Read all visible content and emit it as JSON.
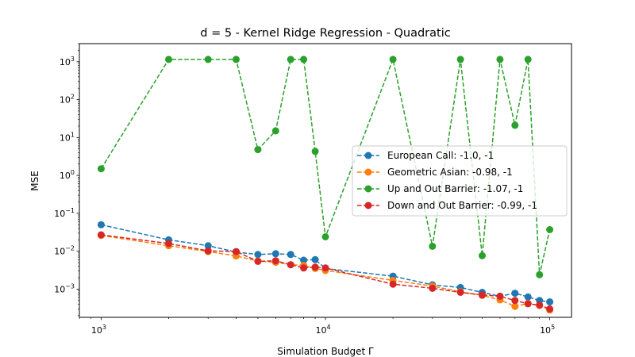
{
  "chart_data": {
    "type": "line",
    "title": "d = 5 - Kernel Ridge Regression - Quadratic",
    "xlabel": "Simulation Budget Γ",
    "ylabel": "MSE",
    "xscale": "log",
    "yscale": "log",
    "xlim": [
      800,
      125000
    ],
    "ylim": [
      0.00018,
      3000
    ],
    "grid": false,
    "legend_position": "center-right",
    "x_ticks": [
      {
        "value": 1000,
        "base": "10",
        "exp": "3"
      },
      {
        "value": 10000,
        "base": "10",
        "exp": "4"
      },
      {
        "value": 100000,
        "base": "10",
        "exp": "5"
      }
    ],
    "y_ticks": [
      {
        "value": 0.001,
        "base": "10",
        "exp": "−3"
      },
      {
        "value": 0.01,
        "base": "10",
        "exp": "−2"
      },
      {
        "value": 0.1,
        "base": "10",
        "exp": "−1"
      },
      {
        "value": 1,
        "base": "10",
        "exp": "0"
      },
      {
        "value": 10,
        "base": "10",
        "exp": "1"
      },
      {
        "value": 100,
        "base": "10",
        "exp": "2"
      },
      {
        "value": 1000,
        "base": "10",
        "exp": "3"
      }
    ],
    "x": [
      1000,
      2000,
      3000,
      4000,
      5000,
      6000,
      7000,
      8000,
      9000,
      10000,
      20000,
      30000,
      40000,
      50000,
      60000,
      70000,
      80000,
      90000,
      100000
    ],
    "series": [
      {
        "name": "European Call: -1.0, -1",
        "color": "#1f77b4",
        "values": [
          0.05,
          0.02,
          0.014,
          0.0095,
          0.0082,
          0.0086,
          0.0082,
          0.0058,
          0.006,
          0.0035,
          0.0022,
          0.0013,
          0.0011,
          0.00082,
          0.00065,
          0.00078,
          0.00062,
          0.0005,
          0.00046
        ]
      },
      {
        "name": "Geometric Asian: -0.98, -1",
        "color": "#ff7f0e",
        "values": [
          0.026,
          0.014,
          0.0098,
          0.0075,
          0.0055,
          0.0051,
          0.0044,
          0.0042,
          0.0035,
          0.0031,
          0.0017,
          0.0012,
          0.00085,
          0.00068,
          0.00052,
          0.00035,
          0.00042,
          0.00037,
          0.00028
        ]
      },
      {
        "name": "Up and Out Barrier: -1.07, -1",
        "color": "#2ca02c",
        "values": [
          1.5,
          1150,
          1150,
          1150,
          4.8,
          15,
          1150,
          1150,
          4.3,
          0.024,
          1150,
          0.0135,
          1150,
          0.0076,
          1150,
          21,
          1150,
          0.0024,
          0.037
        ]
      },
      {
        "name": "Down and Out Barrier: -0.99, -1",
        "color": "#d62728",
        "values": [
          0.027,
          0.016,
          0.0102,
          0.0098,
          0.0054,
          0.0056,
          0.0044,
          0.0036,
          0.0038,
          0.0036,
          0.00135,
          0.00105,
          0.00082,
          0.0007,
          0.00065,
          0.0005,
          0.00041,
          0.00038,
          0.0003
        ]
      }
    ]
  }
}
